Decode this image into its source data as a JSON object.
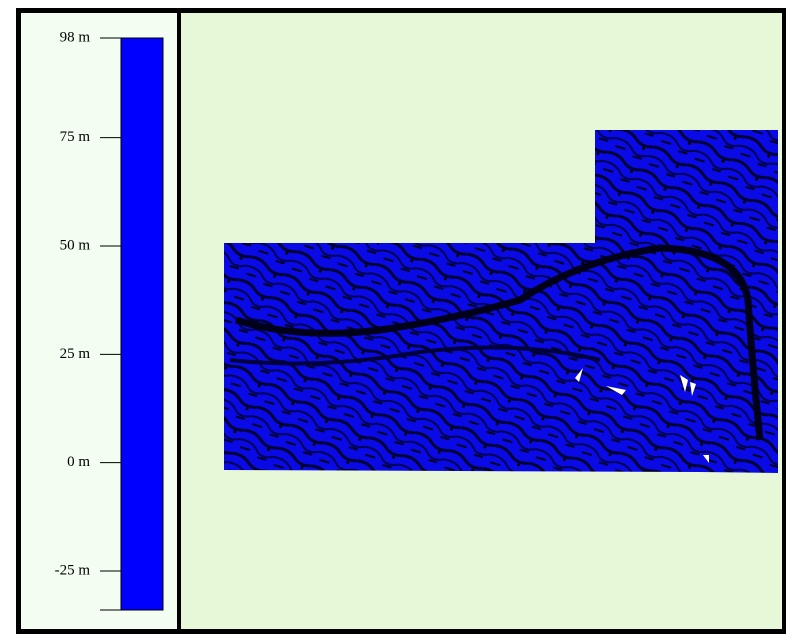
{
  "legend": {
    "color": "#0000ff",
    "range": [
      -34,
      98
    ],
    "ticks": [
      {
        "value": 98,
        "label": "98 m"
      },
      {
        "value": 75,
        "label": "75 m"
      },
      {
        "value": 50,
        "label": "50 m"
      },
      {
        "value": 25,
        "label": "25 m"
      },
      {
        "value": 0,
        "label": "0 m"
      },
      {
        "value": -25,
        "label": "-25 m"
      }
    ]
  }
}
